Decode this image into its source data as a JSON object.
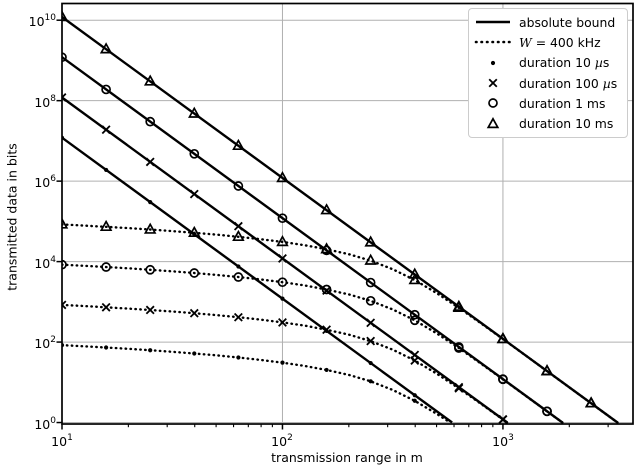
{
  "figure": {
    "background": "#ffffff"
  },
  "colors": {
    "line": "#000000",
    "grid": "#b0b0b0",
    "legend_border": "#cccccc",
    "text": "#000000"
  },
  "legend": [
    {
      "glyph": "solid-line",
      "label": "absolute bound"
    },
    {
      "glyph": "dotted-line",
      "label": "W = 400 kHz"
    },
    {
      "glyph": "dot",
      "label": "duration 10 µs"
    },
    {
      "glyph": "x",
      "label": "duration 100 µs"
    },
    {
      "glyph": "circle",
      "label": "duration 1 ms"
    },
    {
      "glyph": "triangle",
      "label": "duration 10 ms"
    }
  ],
  "chart_data": {
    "type": "line",
    "title": "",
    "xlabel": "transmission range in m",
    "ylabel": "transmitted data in bits",
    "xscale": "log",
    "yscale": "log",
    "xlim": [
      10,
      3890
    ],
    "ylim": [
      0.92,
      26000000000
    ],
    "x_tick_exponents": [
      1,
      2,
      3
    ],
    "y_tick_exponents": [
      0,
      2,
      4,
      6,
      8,
      10
    ],
    "x_minor_ticks": [
      20,
      30,
      40,
      50,
      60,
      70,
      80,
      90,
      200,
      300,
      400,
      500,
      600,
      700,
      800,
      900,
      2000,
      3000
    ],
    "grid": true,
    "legend_position": "upper right",
    "series": [
      {
        "name": "W = 400 kHz, duration 10 µs",
        "style": "dotted",
        "marker": "dot",
        "x": [
          10,
          12.6,
          15.8,
          20,
          25.1,
          31.6,
          39.8,
          50.1,
          63.1,
          79.4,
          100,
          126,
          158,
          200,
          251,
          316,
          398,
          501,
          576
        ],
        "y": [
          84,
          78.6,
          73.3,
          68,
          62.7,
          57.4,
          52.1,
          46.8,
          41.4,
          36.1,
          30.8,
          25.6,
          20.3,
          15.3,
          10.6,
          6.49,
          3.48,
          1.64,
          1
        ],
        "marker_x": [
          10,
          15.85,
          25.12,
          39.81,
          63.1,
          100,
          158.5,
          251.2,
          398.1
        ],
        "marker_y": [
          84,
          73.3,
          62.7,
          52.1,
          41.4,
          30.8,
          20.3,
          10.6,
          3.48
        ]
      },
      {
        "name": "W = 400 kHz, duration 100 µs",
        "style": "dotted",
        "marker": "x",
        "x": [
          10,
          12.6,
          15.8,
          20,
          25.1,
          31.6,
          39.8,
          50.1,
          63.1,
          79.4,
          100,
          126,
          158,
          200,
          251,
          316,
          398,
          501,
          631,
          794,
          1000,
          1045
        ],
        "y": [
          840,
          786,
          733,
          680,
          627,
          574,
          521,
          468,
          414,
          361,
          308,
          256,
          203,
          153,
          106,
          64.9,
          34.8,
          16.4,
          7.11,
          2.94,
          1.19,
          1
        ],
        "marker_x": [
          10,
          15.85,
          25.12,
          39.81,
          63.1,
          100,
          158.5,
          251.2,
          398.1,
          631,
          1000
        ],
        "marker_y": [
          840,
          733,
          627,
          521,
          414,
          308,
          203,
          106,
          34.8,
          7.11,
          1.19
        ]
      },
      {
        "name": "W = 400 kHz, duration 1 ms",
        "style": "dotted",
        "marker": "circle",
        "x": [
          10,
          12.6,
          15.8,
          20,
          25.1,
          31.6,
          39.8,
          50.1,
          63.1,
          79.4,
          100,
          126,
          158,
          200,
          251,
          316,
          398,
          501,
          631,
          794,
          1000,
          1259,
          1585,
          1860
        ],
        "y": [
          8400,
          7860,
          7330,
          6800,
          6270,
          5740,
          5210,
          4680,
          4140,
          3610,
          3080,
          2560,
          2030,
          1530,
          1060,
          649,
          348,
          164,
          71.1,
          29.4,
          11.9,
          4.76,
          1.9,
          1
        ],
        "marker_x": [
          10,
          15.85,
          25.12,
          39.81,
          63.1,
          100,
          158.5,
          251.2,
          398.1,
          631,
          1000,
          1585
        ],
        "marker_y": [
          8400,
          7330,
          6270,
          5210,
          4140,
          3080,
          2030,
          1060,
          348,
          71.1,
          11.9,
          1.9
        ]
      },
      {
        "name": "W = 400 kHz, duration 10 ms",
        "style": "dotted",
        "marker": "triangle",
        "x": [
          10,
          12.6,
          15.8,
          20,
          25.1,
          31.6,
          39.8,
          50.1,
          63.1,
          79.4,
          100,
          126,
          158,
          200,
          251,
          316,
          398,
          501,
          631,
          794,
          1000,
          1259,
          1585,
          1995,
          2512,
          3162,
          3310
        ],
        "y": [
          84000,
          78600,
          73300,
          68000,
          62700,
          57400,
          52100,
          46800,
          41400,
          36100,
          30800,
          25600,
          20300,
          15300,
          10600,
          6490,
          3480,
          1640,
          711,
          294,
          119,
          47.6,
          19,
          7.57,
          3.01,
          1.2,
          1
        ],
        "marker_x": [
          10,
          15.85,
          25.12,
          39.81,
          63.1,
          100,
          158.5,
          251.2,
          398.1,
          631,
          1000,
          1585,
          2512
        ],
        "marker_y": [
          84000,
          73300,
          62700,
          52100,
          41400,
          30800,
          20300,
          10600,
          3480,
          711,
          119,
          19,
          3.01
        ]
      },
      {
        "name": "absolute bound, duration 10 µs",
        "style": "solid",
        "marker": "dot",
        "x": [
          10,
          588
        ],
        "y": [
          12000000,
          1
        ],
        "marker_x": [
          10,
          15.85,
          25.12,
          39.81,
          63.1,
          100,
          158.5,
          251.2,
          398.1
        ],
        "marker_y": [
          12000000,
          1900000,
          301000,
          47800,
          7570,
          1200,
          190,
          30.1,
          4.78
        ]
      },
      {
        "name": "absolute bound, duration 100 µs",
        "style": "solid",
        "marker": "x",
        "x": [
          10,
          1047
        ],
        "y": [
          120000000,
          1
        ],
        "marker_x": [
          10,
          15.85,
          25.12,
          39.81,
          63.1,
          100,
          158.5,
          251.2,
          398.1,
          631,
          1000
        ],
        "marker_y": [
          120000000,
          19000000,
          3010000,
          478000,
          75700,
          12000,
          1900,
          301,
          47.8,
          7.57,
          1.2
        ]
      },
      {
        "name": "absolute bound, duration 1 ms",
        "style": "solid",
        "marker": "circle",
        "x": [
          10,
          1861
        ],
        "y": [
          1200000000,
          1
        ],
        "marker_x": [
          10,
          15.85,
          25.12,
          39.81,
          63.1,
          100,
          158.5,
          251.2,
          398.1,
          631,
          1000,
          1585
        ],
        "marker_y": [
          1200000000,
          190000000,
          30100000,
          4780000,
          757000,
          120000,
          19000,
          3010,
          478,
          75.7,
          12,
          1.9
        ]
      },
      {
        "name": "absolute bound, duration 10 ms",
        "style": "solid",
        "marker": "triangle",
        "x": [
          10,
          3310
        ],
        "y": [
          12000000000,
          1
        ],
        "marker_x": [
          10,
          15.85,
          25.12,
          39.81,
          63.1,
          100,
          158.5,
          251.2,
          398.1,
          631,
          1000,
          1585,
          2512
        ],
        "marker_y": [
          12000000000,
          1900000000,
          301000000,
          47800000,
          7570000,
          1200000,
          190000,
          30100,
          4780,
          757,
          120,
          19,
          3.01
        ]
      }
    ]
  }
}
